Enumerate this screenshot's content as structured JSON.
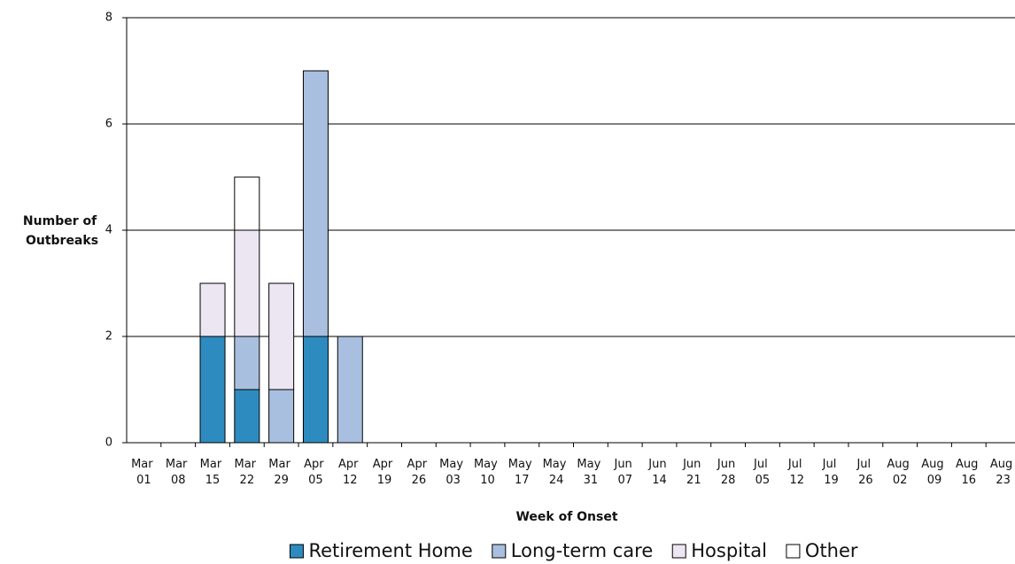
{
  "chart_data": {
    "type": "stacked_bar",
    "x_label": "Week of Onset",
    "y_label": "Number of Outbreaks",
    "categories": [
      "Mar 01",
      "Mar 08",
      "Mar 15",
      "Mar 22",
      "Mar 29",
      "Apr 05",
      "Apr 12",
      "Apr 19",
      "Apr 26",
      "May 03",
      "May 10",
      "May 17",
      "May 24",
      "May 31",
      "Jun 07",
      "Jun 14",
      "Jun 21",
      "Jun 28",
      "Jul 05",
      "Jul 12",
      "Jul 19",
      "Jul 26",
      "Aug 02",
      "Aug 09",
      "Aug 16",
      "Aug 23"
    ],
    "series": [
      {
        "name": "Retirement Home",
        "color": "#2e8bc0",
        "values": [
          0,
          0,
          2,
          1,
          0,
          2,
          0,
          0,
          0,
          0,
          0,
          0,
          0,
          0,
          0,
          0,
          0,
          0,
          0,
          0,
          0,
          0,
          0,
          0,
          0,
          0
        ]
      },
      {
        "name": "Long-term care",
        "color": "#a9bfdf",
        "values": [
          0,
          0,
          0,
          1,
          1,
          5,
          2,
          0,
          0,
          0,
          0,
          0,
          0,
          0,
          0,
          0,
          0,
          0,
          0,
          0,
          0,
          0,
          0,
          0,
          0,
          0
        ]
      },
      {
        "name": "Hospital",
        "color": "#ece6f2",
        "values": [
          0,
          0,
          1,
          2,
          2,
          0,
          0,
          0,
          0,
          0,
          0,
          0,
          0,
          0,
          0,
          0,
          0,
          0,
          0,
          0,
          0,
          0,
          0,
          0,
          0,
          0
        ]
      },
      {
        "name": "Other",
        "color": "#ffffff",
        "values": [
          0,
          0,
          0,
          1,
          0,
          0,
          0,
          0,
          0,
          0,
          0,
          0,
          0,
          0,
          0,
          0,
          0,
          0,
          0,
          0,
          0,
          0,
          0,
          0,
          0,
          0
        ]
      }
    ],
    "ylim": [
      0,
      8
    ],
    "yticks": [
      0,
      2,
      4,
      6,
      8
    ],
    "grid": true
  }
}
